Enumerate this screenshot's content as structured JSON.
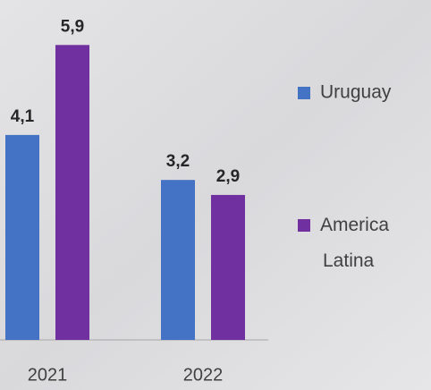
{
  "chart_data": {
    "type": "bar",
    "categories": [
      "2021",
      "2022"
    ],
    "series": [
      {
        "name": "Uruguay",
        "color": "#4472c4",
        "values": [
          4.1,
          3.2
        ],
        "value_labels": [
          "4,1",
          "3,2"
        ]
      },
      {
        "name": "America Latina",
        "color": "#7030a0",
        "values": [
          5.9,
          2.9
        ],
        "value_labels": [
          "5,9",
          "2,9"
        ]
      }
    ],
    "ylim": [
      0,
      6.8
    ],
    "legend": "right"
  }
}
